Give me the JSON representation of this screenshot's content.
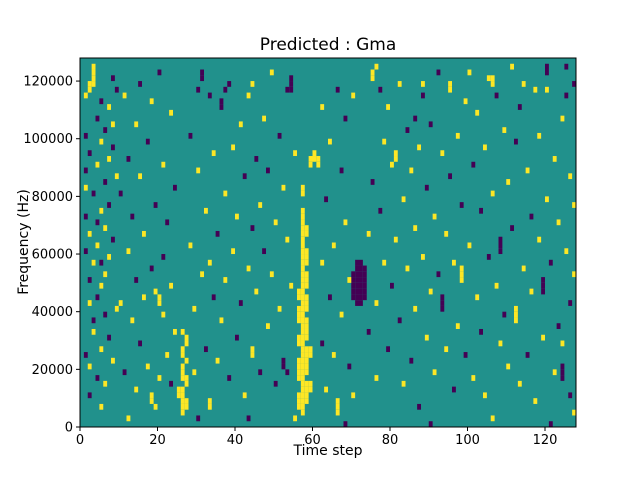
{
  "chart_data": {
    "type": "heatmap",
    "title": "Predicted : Gma",
    "xlabel": "Time step",
    "ylabel": "Frequency (Hz)",
    "xlim": [
      0,
      128
    ],
    "ylim": [
      0,
      128000
    ],
    "x_ticks": [
      0,
      20,
      40,
      60,
      80,
      100,
      120
    ],
    "y_ticks": [
      0,
      20000,
      40000,
      60000,
      80000,
      100000,
      120000
    ],
    "grid_cols": 128,
    "grid_rows": 64,
    "cell_time_width": 1,
    "cell_freq_height_hz": 2000,
    "legend_position": "none",
    "grid": false,
    "colors": {
      "background_mid": "#21918c",
      "high": "#fde725",
      "low": "#440154",
      "frame": "#000000"
    },
    "cells_format": "runs:[time_col,row_start,row_end,value]; cells:[time_col,freq_row,value]; value 1=high(yellow), 0=low(purple); every other cell = mid(teal); freq = row*2000 Hz",
    "runs": [
      [
        56,
        3,
        5,
        1
      ],
      [
        56,
        8,
        11,
        1
      ],
      [
        56,
        14,
        15,
        1
      ],
      [
        56,
        18,
        20,
        1
      ],
      [
        56,
        22,
        23,
        1
      ],
      [
        57,
        2,
        37,
        1
      ],
      [
        57,
        40,
        41,
        1
      ],
      [
        58,
        4,
        7,
        1
      ],
      [
        58,
        9,
        13,
        1
      ],
      [
        58,
        15,
        18,
        1
      ],
      [
        58,
        20,
        22,
        1
      ],
      [
        58,
        24,
        26,
        1
      ],
      [
        58,
        28,
        30,
        1
      ],
      [
        58,
        33,
        34,
        1
      ],
      [
        59,
        6,
        7,
        1
      ],
      [
        59,
        12,
        13,
        1
      ],
      [
        59,
        45,
        46,
        1
      ],
      [
        60,
        46,
        47,
        1
      ],
      [
        61,
        45,
        46,
        1
      ],
      [
        70,
        22,
        26,
        0
      ],
      [
        71,
        21,
        28,
        0
      ],
      [
        72,
        21,
        28,
        0
      ],
      [
        73,
        22,
        27,
        0
      ],
      [
        25,
        5,
        6,
        1
      ],
      [
        26,
        2,
        6,
        1
      ],
      [
        26,
        8,
        10,
        1
      ],
      [
        26,
        12,
        13,
        1
      ],
      [
        27,
        3,
        4,
        1
      ],
      [
        27,
        7,
        8,
        1
      ],
      [
        27,
        14,
        15,
        1
      ],
      [
        3,
        59,
        62,
        1
      ],
      [
        18,
        4,
        5,
        1
      ],
      [
        33,
        3,
        4,
        1
      ],
      [
        36,
        55,
        56,
        0
      ],
      [
        44,
        12,
        13,
        1
      ],
      [
        52,
        10,
        11,
        0
      ],
      [
        54,
        58,
        60,
        0
      ],
      [
        66,
        2,
        4,
        1
      ],
      [
        75,
        60,
        61,
        1
      ],
      [
        81,
        46,
        47,
        1
      ],
      [
        93,
        20,
        22,
        0
      ],
      [
        95,
        58,
        59,
        1
      ],
      [
        98,
        25,
        27,
        1
      ],
      [
        106,
        59,
        60,
        1
      ],
      [
        108,
        30,
        32,
        0
      ],
      [
        112,
        18,
        20,
        1
      ],
      [
        119,
        23,
        25,
        0
      ],
      [
        120,
        61,
        62,
        0
      ],
      [
        124,
        8,
        10,
        0
      ],
      [
        31,
        60,
        61,
        0
      ]
    ],
    "cells": [
      [
        1,
        50,
        0
      ],
      [
        1,
        44,
        0
      ],
      [
        1,
        36,
        0
      ],
      [
        1,
        30,
        0
      ],
      [
        1,
        12,
        0
      ],
      [
        1,
        57,
        1
      ],
      [
        1,
        41,
        1
      ],
      [
        2,
        58,
        1
      ],
      [
        2,
        59,
        1
      ],
      [
        2,
        33,
        1
      ],
      [
        2,
        21,
        1
      ],
      [
        2,
        10,
        1
      ],
      [
        2,
        47,
        0
      ],
      [
        2,
        25,
        0
      ],
      [
        2,
        5,
        0
      ],
      [
        3,
        28,
        1
      ],
      [
        3,
        16,
        1
      ],
      [
        3,
        40,
        0
      ],
      [
        3,
        18,
        0
      ],
      [
        4,
        53,
        0
      ],
      [
        4,
        35,
        0
      ],
      [
        4,
        22,
        0
      ],
      [
        4,
        8,
        0
      ],
      [
        4,
        45,
        1
      ],
      [
        4,
        31,
        1
      ],
      [
        5,
        49,
        1
      ],
      [
        5,
        37,
        1
      ],
      [
        5,
        24,
        1
      ],
      [
        5,
        13,
        1
      ],
      [
        5,
        3,
        1
      ],
      [
        5,
        56,
        0
      ],
      [
        5,
        28,
        0
      ],
      [
        6,
        51,
        0
      ],
      [
        6,
        42,
        0
      ],
      [
        6,
        19,
        0
      ],
      [
        6,
        34,
        1
      ],
      [
        6,
        26,
        1
      ],
      [
        6,
        7,
        1
      ],
      [
        7,
        55,
        1
      ],
      [
        7,
        46,
        1
      ],
      [
        7,
        29,
        1
      ],
      [
        7,
        38,
        0
      ],
      [
        7,
        15,
        0
      ],
      [
        8,
        60,
        0
      ],
      [
        8,
        48,
        0
      ],
      [
        8,
        32,
        0
      ],
      [
        8,
        52,
        1
      ],
      [
        8,
        11,
        1
      ],
      [
        9,
        58,
        0
      ],
      [
        9,
        20,
        1
      ],
      [
        9,
        43,
        1
      ],
      [
        10,
        40,
        0
      ],
      [
        10,
        21,
        1
      ],
      [
        11,
        57,
        1
      ],
      [
        11,
        9,
        0
      ],
      [
        12,
        1,
        1
      ],
      [
        12,
        30,
        1
      ],
      [
        12,
        46,
        0
      ],
      [
        13,
        36,
        0
      ],
      [
        13,
        18,
        1
      ],
      [
        14,
        52,
        1
      ],
      [
        14,
        25,
        0
      ],
      [
        14,
        6,
        1
      ],
      [
        15,
        59,
        0
      ],
      [
        15,
        43,
        1
      ],
      [
        15,
        14,
        0
      ],
      [
        16,
        33,
        1
      ],
      [
        16,
        22,
        1
      ],
      [
        17,
        49,
        0
      ],
      [
        17,
        10,
        1
      ],
      [
        18,
        27,
        0
      ],
      [
        18,
        56,
        1
      ],
      [
        19,
        3,
        1
      ],
      [
        19,
        38,
        0
      ],
      [
        19,
        23,
        1
      ],
      [
        20,
        8,
        1
      ],
      [
        20,
        61,
        0
      ],
      [
        20,
        21,
        1
      ],
      [
        20,
        22,
        1
      ],
      [
        21,
        19,
        1
      ],
      [
        21,
        45,
        1
      ],
      [
        21,
        29,
        0
      ],
      [
        22,
        12,
        1
      ],
      [
        22,
        35,
        0
      ],
      [
        23,
        54,
        1
      ],
      [
        23,
        24,
        1
      ],
      [
        23,
        7,
        0
      ],
      [
        24,
        41,
        0
      ],
      [
        24,
        16,
        1
      ],
      [
        26,
        16,
        1
      ],
      [
        27,
        11,
        1
      ],
      [
        28,
        31,
        1
      ],
      [
        28,
        50,
        0
      ],
      [
        29,
        20,
        1
      ],
      [
        29,
        9,
        1
      ],
      [
        30,
        1,
        0
      ],
      [
        30,
        44,
        1
      ],
      [
        30,
        58,
        0
      ],
      [
        31,
        26,
        1
      ],
      [
        32,
        37,
        1
      ],
      [
        32,
        13,
        0
      ],
      [
        33,
        57,
        0
      ],
      [
        33,
        28,
        1
      ],
      [
        34,
        47,
        1
      ],
      [
        34,
        22,
        0
      ],
      [
        35,
        33,
        0
      ],
      [
        35,
        11,
        1
      ],
      [
        36,
        18,
        1
      ],
      [
        37,
        58,
        0
      ],
      [
        37,
        40,
        1
      ],
      [
        37,
        25,
        1
      ],
      [
        38,
        59,
        0
      ],
      [
        38,
        8,
        0
      ],
      [
        39,
        30,
        1
      ],
      [
        39,
        48,
        1
      ],
      [
        40,
        15,
        0
      ],
      [
        40,
        36,
        1
      ],
      [
        41,
        52,
        1
      ],
      [
        41,
        21,
        0
      ],
      [
        42,
        5,
        1
      ],
      [
        42,
        43,
        0
      ],
      [
        43,
        1,
        0
      ],
      [
        43,
        27,
        1
      ],
      [
        43,
        57,
        1
      ],
      [
        44,
        59,
        1
      ],
      [
        44,
        34,
        0
      ],
      [
        45,
        46,
        0
      ],
      [
        45,
        23,
        1
      ],
      [
        46,
        38,
        1
      ],
      [
        46,
        9,
        0
      ],
      [
        47,
        30,
        0
      ],
      [
        47,
        53,
        1
      ],
      [
        48,
        17,
        1
      ],
      [
        48,
        44,
        0
      ],
      [
        49,
        26,
        1
      ],
      [
        49,
        61,
        1
      ],
      [
        50,
        35,
        1
      ],
      [
        50,
        7,
        0
      ],
      [
        51,
        50,
        0
      ],
      [
        51,
        20,
        1
      ],
      [
        52,
        41,
        1
      ],
      [
        53,
        9,
        0
      ],
      [
        53,
        32,
        1
      ],
      [
        53,
        58,
        0
      ],
      [
        54,
        24,
        1
      ],
      [
        55,
        1,
        1
      ],
      [
        55,
        47,
        1
      ],
      [
        62,
        28,
        1
      ],
      [
        62,
        14,
        0
      ],
      [
        62,
        55,
        1
      ],
      [
        63,
        39,
        0
      ],
      [
        63,
        6,
        1
      ],
      [
        64,
        49,
        1
      ],
      [
        64,
        22,
        0
      ],
      [
        65,
        31,
        1
      ],
      [
        65,
        12,
        1
      ],
      [
        66,
        58,
        0
      ],
      [
        67,
        44,
        0
      ],
      [
        67,
        19,
        1
      ],
      [
        68,
        0,
        0
      ],
      [
        68,
        35,
        1
      ],
      [
        68,
        53,
        0
      ],
      [
        69,
        25,
        1
      ],
      [
        69,
        10,
        0
      ],
      [
        70,
        57,
        1
      ],
      [
        70,
        5,
        1
      ],
      [
        74,
        33,
        1
      ],
      [
        74,
        16,
        0
      ],
      [
        75,
        42,
        0
      ],
      [
        76,
        62,
        1
      ],
      [
        76,
        21,
        1
      ],
      [
        76,
        8,
        1
      ],
      [
        77,
        58,
        0
      ],
      [
        77,
        37,
        0
      ],
      [
        78,
        28,
        1
      ],
      [
        78,
        49,
        1
      ],
      [
        79,
        13,
        0
      ],
      [
        79,
        55,
        1
      ],
      [
        80,
        45,
        1
      ],
      [
        80,
        24,
        0
      ],
      [
        81,
        32,
        1
      ],
      [
        82,
        18,
        0
      ],
      [
        82,
        59,
        1
      ],
      [
        83,
        39,
        1
      ],
      [
        83,
        7,
        1
      ],
      [
        84,
        51,
        0
      ],
      [
        84,
        27,
        1
      ],
      [
        85,
        44,
        1
      ],
      [
        85,
        11,
        0
      ],
      [
        86,
        53,
        0
      ],
      [
        86,
        34,
        1
      ],
      [
        86,
        20,
        1
      ],
      [
        87,
        48,
        1
      ],
      [
        87,
        3,
        0
      ],
      [
        88,
        59,
        1
      ],
      [
        88,
        57,
        0
      ],
      [
        88,
        29,
        1
      ],
      [
        89,
        15,
        1
      ],
      [
        89,
        41,
        0
      ],
      [
        90,
        0,
        0
      ],
      [
        90,
        52,
        0
      ],
      [
        90,
        23,
        1
      ],
      [
        91,
        36,
        1
      ],
      [
        91,
        9,
        1
      ],
      [
        92,
        61,
        0
      ],
      [
        92,
        26,
        0
      ],
      [
        93,
        47,
        1
      ],
      [
        94,
        33,
        1
      ],
      [
        94,
        13,
        1
      ],
      [
        95,
        43,
        0
      ],
      [
        96,
        28,
        1
      ],
      [
        96,
        6,
        0
      ],
      [
        97,
        50,
        1
      ],
      [
        97,
        17,
        1
      ],
      [
        98,
        38,
        0
      ],
      [
        99,
        12,
        0
      ],
      [
        99,
        56,
        1
      ],
      [
        100,
        61,
        1
      ],
      [
        100,
        31,
        1
      ],
      [
        101,
        45,
        0
      ],
      [
        101,
        8,
        1
      ],
      [
        102,
        54,
        1
      ],
      [
        102,
        22,
        1
      ],
      [
        103,
        37,
        0
      ],
      [
        103,
        16,
        0
      ],
      [
        104,
        48,
        1
      ],
      [
        104,
        5,
        1
      ],
      [
        105,
        29,
        0
      ],
      [
        105,
        60,
        1
      ],
      [
        106,
        1,
        1
      ],
      [
        106,
        40,
        1
      ],
      [
        107,
        57,
        0
      ],
      [
        107,
        24,
        1
      ],
      [
        108,
        14,
        1
      ],
      [
        109,
        51,
        1
      ],
      [
        109,
        19,
        0
      ],
      [
        110,
        42,
        1
      ],
      [
        110,
        10,
        1
      ],
      [
        111,
        34,
        0
      ],
      [
        111,
        62,
        1
      ],
      [
        112,
        49,
        0
      ],
      [
        113,
        7,
        1
      ],
      [
        113,
        55,
        0
      ],
      [
        114,
        59,
        1
      ],
      [
        114,
        27,
        1
      ],
      [
        115,
        44,
        1
      ],
      [
        115,
        12,
        0
      ],
      [
        116,
        36,
        0
      ],
      [
        116,
        23,
        1
      ],
      [
        117,
        58,
        1
      ],
      [
        117,
        4,
        1
      ],
      [
        118,
        32,
        1
      ],
      [
        118,
        50,
        1
      ],
      [
        119,
        15,
        1
      ],
      [
        120,
        58,
        1
      ],
      [
        120,
        39,
        1
      ],
      [
        121,
        0,
        0
      ],
      [
        121,
        28,
        0
      ],
      [
        122,
        46,
        1
      ],
      [
        122,
        9,
        1
      ],
      [
        123,
        35,
        1
      ],
      [
        123,
        17,
        0
      ],
      [
        124,
        14,
        1
      ],
      [
        124,
        53,
        1
      ],
      [
        125,
        57,
        0
      ],
      [
        125,
        62,
        0
      ],
      [
        125,
        30,
        1
      ],
      [
        126,
        21,
        0
      ],
      [
        126,
        43,
        1
      ],
      [
        126,
        5,
        0
      ],
      [
        127,
        59,
        0
      ],
      [
        127,
        38,
        1
      ],
      [
        127,
        26,
        1
      ],
      [
        127,
        2,
        1
      ]
    ]
  }
}
